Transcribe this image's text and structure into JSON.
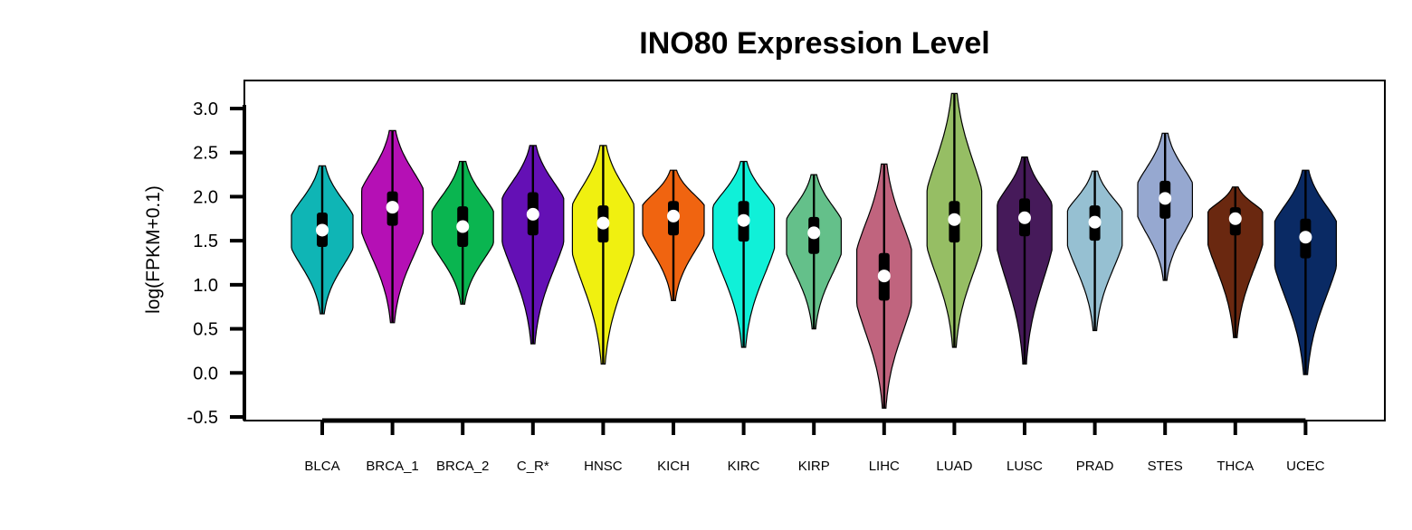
{
  "chart_data": {
    "type": "violin",
    "title": "INO80 Expression Level",
    "xlabel": "",
    "ylabel": "log(FPKM+0.1)",
    "ylim": [
      -0.5,
      3.0
    ],
    "yticks": [
      "3.0",
      "2.5",
      "2.0",
      "1.5",
      "1.0",
      "0.5",
      "0.0",
      "-0.5"
    ],
    "categories": [
      "BLCA",
      "BRCA_1",
      "BRCA_2",
      "C_R*",
      "HNSC",
      "KICH",
      "KIRC",
      "KIRP",
      "LIHC",
      "LUAD",
      "LUSC",
      "PRAD",
      "STES",
      "THCA",
      "UCEC"
    ],
    "series": [
      {
        "category": "BLCA",
        "color": "#0fb5b5",
        "min": 0.67,
        "max": 2.35,
        "q1": 1.43,
        "q3": 1.82,
        "median": 1.62,
        "mode": 1.62,
        "halfwidth": 0.45,
        "whisker": [
          0.67,
          2.35
        ]
      },
      {
        "category": "BRCA_1",
        "color": "#b510b5",
        "min": 0.57,
        "max": 2.75,
        "q1": 1.67,
        "q3": 2.06,
        "median": 1.88,
        "mode": 1.88,
        "halfwidth": 0.45,
        "whisker": [
          0.57,
          2.75
        ]
      },
      {
        "category": "BRCA_2",
        "color": "#0ab550",
        "min": 0.78,
        "max": 2.4,
        "q1": 1.43,
        "q3": 1.89,
        "median": 1.66,
        "mode": 1.66,
        "halfwidth": 0.45,
        "whisker": [
          0.78,
          2.4
        ]
      },
      {
        "category": "C_R*",
        "color": "#6410b5",
        "min": 0.33,
        "max": 2.58,
        "q1": 1.56,
        "q3": 2.05,
        "median": 1.8,
        "mode": 1.8,
        "halfwidth": 0.45,
        "whisker": [
          0.33,
          2.58
        ]
      },
      {
        "category": "HNSC",
        "color": "#f0f010",
        "min": 0.1,
        "max": 2.58,
        "q1": 1.48,
        "q3": 1.9,
        "median": 1.7,
        "mode": 1.7,
        "halfwidth": 0.45,
        "whisker": [
          0.1,
          2.58
        ]
      },
      {
        "category": "KICH",
        "color": "#f06410",
        "min": 0.82,
        "max": 2.3,
        "q1": 1.56,
        "q3": 1.95,
        "median": 1.78,
        "mode": 1.78,
        "halfwidth": 0.45,
        "whisker": [
          0.82,
          2.3
        ]
      },
      {
        "category": "KIRC",
        "color": "#10f0d8",
        "min": 0.29,
        "max": 2.4,
        "q1": 1.49,
        "q3": 1.95,
        "median": 1.73,
        "mode": 1.73,
        "halfwidth": 0.45,
        "whisker": [
          0.29,
          2.4
        ]
      },
      {
        "category": "KIRP",
        "color": "#64c08a",
        "min": 0.5,
        "max": 2.25,
        "q1": 1.35,
        "q3": 1.77,
        "median": 1.59,
        "mode": 1.59,
        "halfwidth": 0.4,
        "whisker": [
          0.5,
          2.25
        ]
      },
      {
        "category": "LIHC",
        "color": "#c0647e",
        "min": -0.4,
        "max": 2.37,
        "q1": 0.82,
        "q3": 1.36,
        "median": 1.1,
        "mode": 1.1,
        "halfwidth": 0.4,
        "whisker": [
          -0.4,
          2.37
        ]
      },
      {
        "category": "LUAD",
        "color": "#96be64",
        "min": 0.29,
        "max": 3.17,
        "q1": 1.48,
        "q3": 1.95,
        "median": 1.74,
        "mode": 1.74,
        "halfwidth": 0.4,
        "whisker": [
          0.29,
          3.17
        ]
      },
      {
        "category": "LUSC",
        "color": "#461a5a",
        "min": 0.1,
        "max": 2.45,
        "q1": 1.55,
        "q3": 1.98,
        "median": 1.76,
        "mode": 1.76,
        "halfwidth": 0.4,
        "whisker": [
          0.1,
          2.45
        ]
      },
      {
        "category": "PRAD",
        "color": "#96c0d2",
        "min": 0.48,
        "max": 2.29,
        "q1": 1.5,
        "q3": 1.9,
        "median": 1.71,
        "mode": 1.71,
        "halfwidth": 0.4,
        "whisker": [
          0.48,
          2.29
        ]
      },
      {
        "category": "STES",
        "color": "#96a8d0",
        "min": 1.05,
        "max": 2.72,
        "q1": 1.75,
        "q3": 2.18,
        "median": 1.98,
        "mode": 1.98,
        "halfwidth": 0.4,
        "whisker": [
          1.05,
          2.72
        ]
      },
      {
        "category": "THCA",
        "color": "#6a2810",
        "min": 0.4,
        "max": 2.11,
        "q1": 1.56,
        "q3": 1.88,
        "median": 1.75,
        "mode": 1.75,
        "halfwidth": 0.4,
        "whisker": [
          0.4,
          2.11
        ]
      },
      {
        "category": "UCEC",
        "color": "#0a2a64",
        "min": -0.02,
        "max": 2.3,
        "q1": 1.3,
        "q3": 1.75,
        "median": 1.54,
        "mode": 1.54,
        "halfwidth": 0.45,
        "whisker": [
          -0.02,
          2.3
        ]
      }
    ]
  }
}
